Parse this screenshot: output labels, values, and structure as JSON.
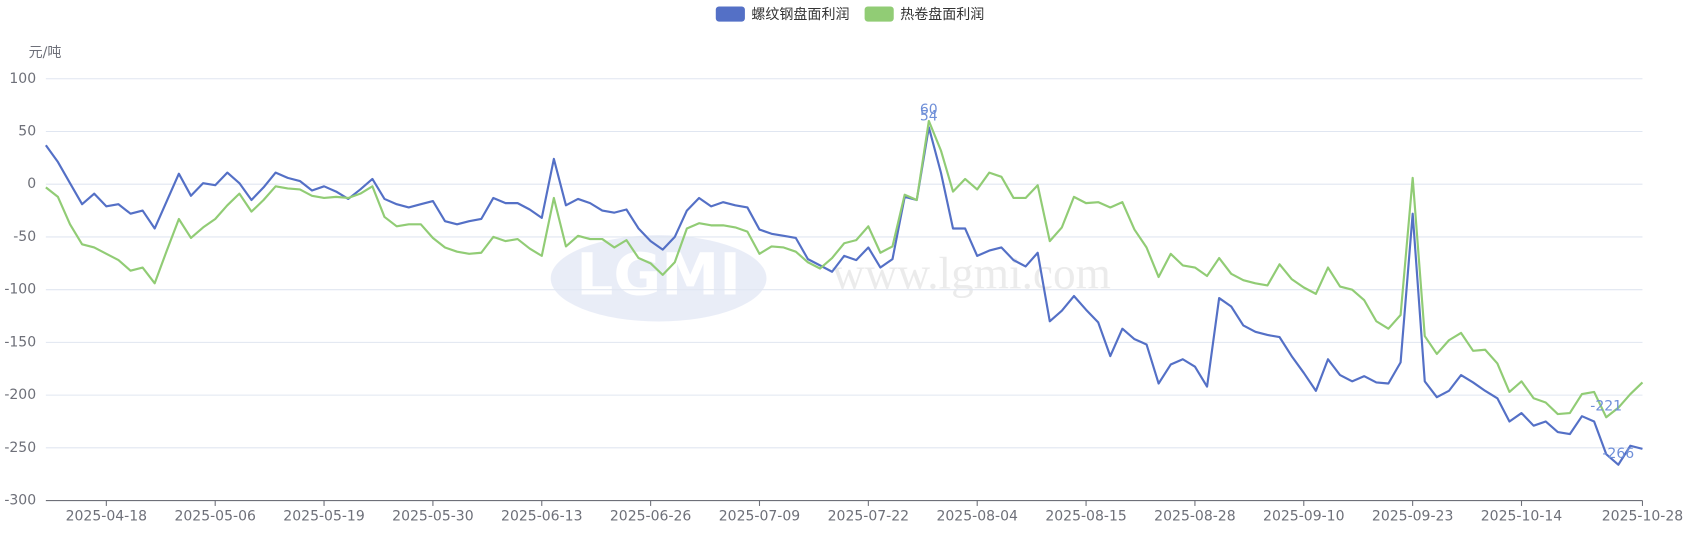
{
  "chart_data": {
    "type": "line",
    "y_unit": "元/吨",
    "watermark": "www.lgmi.com",
    "watermark_logo": "LGMI",
    "categories": [
      null,
      null,
      null,
      null,
      null,
      "2025-04-18",
      null,
      null,
      null,
      null,
      null,
      null,
      null,
      null,
      "2025-05-06",
      null,
      null,
      null,
      null,
      null,
      null,
      null,
      null,
      "2025-05-19",
      null,
      null,
      null,
      null,
      null,
      null,
      null,
      null,
      "2025-05-30",
      null,
      null,
      null,
      null,
      null,
      null,
      null,
      null,
      "2025-06-13",
      null,
      null,
      null,
      null,
      null,
      null,
      null,
      null,
      "2025-06-26",
      null,
      null,
      null,
      null,
      null,
      null,
      null,
      null,
      "2025-07-09",
      null,
      null,
      null,
      null,
      null,
      null,
      null,
      null,
      "2025-07-22",
      null,
      null,
      null,
      null,
      null,
      null,
      null,
      null,
      "2025-08-04",
      null,
      null,
      null,
      null,
      null,
      null,
      null,
      null,
      "2025-08-15",
      null,
      null,
      null,
      null,
      null,
      null,
      null,
      null,
      "2025-08-28",
      null,
      null,
      null,
      null,
      null,
      null,
      null,
      null,
      "2025-09-10",
      null,
      null,
      null,
      null,
      null,
      null,
      null,
      null,
      "2025-09-23",
      null,
      null,
      null,
      null,
      null,
      null,
      null,
      null,
      "2025-10-14",
      null,
      null,
      null,
      null,
      null,
      null,
      null,
      null,
      null,
      "2025-10-28"
    ],
    "series": [
      {
        "name": "螺纹钢盘面利润",
        "color": "#5470c6",
        "values": [
          37,
          21,
          1,
          -19,
          -9,
          -21,
          -19,
          -28,
          -25,
          -42,
          -16,
          10,
          -11,
          1,
          -1,
          11,
          1,
          -15,
          -3,
          11,
          6,
          3,
          -6,
          -2,
          -7,
          -14,
          -5,
          5,
          -14,
          -19,
          -22,
          -19,
          -16,
          -35,
          -38,
          -35,
          -33,
          -13,
          -18,
          -18,
          -24,
          -32,
          24,
          -20,
          -14,
          -18,
          -25,
          -27,
          -24,
          -42,
          -54,
          -62,
          -50,
          -25,
          -13,
          -21,
          -17,
          -20,
          -22,
          -43,
          -47,
          -49,
          -51,
          -71,
          -77,
          -83,
          -68,
          -72,
          -60,
          -79,
          -71,
          -12,
          -15,
          54,
          11,
          -42,
          -42,
          -68,
          -63,
          -60,
          -72,
          -78,
          -65,
          -130,
          -120,
          -106,
          -119,
          -131,
          -163,
          -137,
          -147,
          -152,
          -189,
          -171,
          -166,
          -173,
          -192,
          -108,
          -116,
          -134,
          -140,
          -143,
          -145,
          -163,
          -179,
          -196,
          -166,
          -181,
          -187,
          -182,
          -188,
          -189,
          -169,
          -28,
          -187,
          -202,
          -196,
          -181,
          -188,
          -196,
          -203,
          -225,
          -217,
          -229,
          -225,
          -235,
          -237,
          -220,
          -225,
          -256,
          -266,
          -248,
          -251
        ]
      },
      {
        "name": "热卷盘面利润",
        "color": "#91cc75",
        "values": [
          -3,
          -12,
          -38,
          -57,
          -60,
          -66,
          -72,
          -82,
          -79,
          -94,
          -63,
          -33,
          -51,
          -41,
          -33,
          -20,
          -9,
          -26,
          -15,
          -2,
          -4,
          -5,
          -11,
          -13,
          -12,
          -13,
          -9,
          -2,
          -31,
          -40,
          -38,
          -38,
          -51,
          -60,
          -64,
          -66,
          -65,
          -50,
          -54,
          -52,
          -61,
          -68,
          -13,
          -59,
          -49,
          -52,
          -52,
          -60,
          -53,
          -70,
          -75,
          -86,
          -74,
          -42,
          -37,
          -39,
          -39,
          -41,
          -45,
          -66,
          -59,
          -60,
          -64,
          -74,
          -80,
          -70,
          -56,
          -53,
          -40,
          -65,
          -59,
          -10,
          -15,
          60,
          32,
          -7,
          5,
          -5,
          11,
          7,
          -13,
          -13,
          -1,
          -54,
          -41,
          -12,
          -18,
          -17,
          -22,
          -17,
          -43,
          -60,
          -88,
          -66,
          -77,
          -79,
          -87,
          -70,
          -85,
          -91,
          -94,
          -96,
          -76,
          -90,
          -98,
          -104,
          -79,
          -97,
          -100,
          -110,
          -130,
          -137,
          -124,
          6,
          -144,
          -161,
          -148,
          -141,
          -158,
          -157,
          -170,
          -197,
          -187,
          -203,
          -207,
          -218,
          -217,
          -199,
          -197,
          -221,
          -212,
          -199,
          -188
        ]
      }
    ],
    "mark_points": [
      "max",
      "min"
    ],
    "ylim": [
      -300,
      100
    ],
    "yticks": [
      -300,
      -250,
      -200,
      -150,
      -100,
      -50,
      0,
      50,
      100
    ],
    "grid": true,
    "legend": "top"
  }
}
